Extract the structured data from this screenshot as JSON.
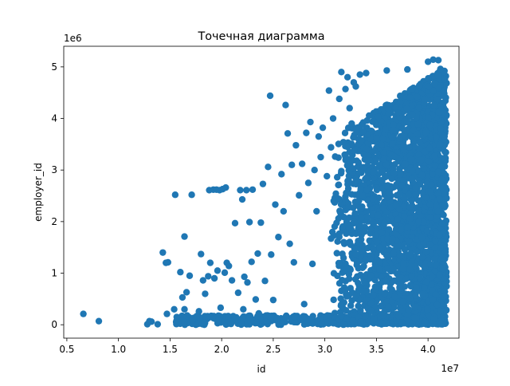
{
  "chart_data": {
    "type": "scatter",
    "title": "Точечная диаграмма",
    "xlabel": "id",
    "ylabel": "employer_id",
    "x_offset_label": "1e7",
    "y_offset_label": "1e6",
    "xlim": [
      0.47,
      4.3
    ],
    "ylim": [
      -0.26,
      5.4
    ],
    "x_ticks": [
      0.5,
      1.0,
      1.5,
      2.0,
      2.5,
      3.0,
      3.5,
      4.0
    ],
    "x_tick_labels": [
      "0.5",
      "1.0",
      "1.5",
      "2.0",
      "2.5",
      "3.0",
      "3.5",
      "4.0"
    ],
    "y_ticks": [
      0,
      1,
      2,
      3,
      4,
      5
    ],
    "y_tick_labels": [
      "0",
      "1",
      "2",
      "3",
      "4",
      "5"
    ],
    "grid": false,
    "marker_color": "#1f77b4",
    "points": [
      [
        0.66,
        0.21
      ],
      [
        0.81,
        0.07
      ],
      [
        1.28,
        0.01
      ],
      [
        1.3,
        0.07
      ],
      [
        1.32,
        0.06
      ],
      [
        1.38,
        0.01
      ],
      [
        1.43,
        1.4
      ],
      [
        1.46,
        1.2
      ],
      [
        1.48,
        1.21
      ],
      [
        1.47,
        0.21
      ],
      [
        1.54,
        0.3
      ],
      [
        1.55,
        2.52
      ],
      [
        1.6,
        1.02
      ],
      [
        1.62,
        0.53
      ],
      [
        1.64,
        1.71
      ],
      [
        1.64,
        0.3
      ],
      [
        1.66,
        0.63
      ],
      [
        1.69,
        0.95
      ],
      [
        1.71,
        2.52
      ],
      [
        1.78,
        0.26
      ],
      [
        1.8,
        1.37
      ],
      [
        1.82,
        0.86
      ],
      [
        1.84,
        0.6
      ],
      [
        1.87,
        0.94
      ],
      [
        1.88,
        2.61
      ],
      [
        1.89,
        1.2
      ],
      [
        1.92,
        2.62
      ],
      [
        1.93,
        0.9
      ],
      [
        1.95,
        2.62
      ],
      [
        1.96,
        1.05
      ],
      [
        1.98,
        2.61
      ],
      [
        1.99,
        0.33
      ],
      [
        2.01,
        2.63
      ],
      [
        2.03,
        1.01
      ],
      [
        2.04,
        2.66
      ],
      [
        2.05,
        1.2
      ],
      [
        2.07,
        1.14
      ],
      [
        2.1,
        0.86
      ],
      [
        2.13,
        1.97
      ],
      [
        2.16,
        0.62
      ],
      [
        2.18,
        2.61
      ],
      [
        2.2,
        2.43
      ],
      [
        2.21,
        0.3
      ],
      [
        2.22,
        0.93
      ],
      [
        2.24,
        2.61
      ],
      [
        2.25,
        0.82
      ],
      [
        2.27,
        1.99
      ],
      [
        2.29,
        1.22
      ],
      [
        2.3,
        2.62
      ],
      [
        2.33,
        0.49
      ],
      [
        2.35,
        1.38
      ],
      [
        2.36,
        0.22
      ],
      [
        2.38,
        1.98
      ],
      [
        2.4,
        2.73
      ],
      [
        2.42,
        0.85
      ],
      [
        2.45,
        3.06
      ],
      [
        2.47,
        4.44
      ],
      [
        2.48,
        1.36
      ],
      [
        2.5,
        0.48
      ],
      [
        2.52,
        2.33
      ],
      [
        2.55,
        1.7
      ],
      [
        2.58,
        2.92
      ],
      [
        2.6,
        2.2
      ],
      [
        2.62,
        4.26
      ],
      [
        2.64,
        3.71
      ],
      [
        2.66,
        1.57
      ],
      [
        2.68,
        3.1
      ],
      [
        2.7,
        1.21
      ],
      [
        2.72,
        3.48
      ],
      [
        2.75,
        2.51
      ],
      [
        2.78,
        3.12
      ],
      [
        2.8,
        0.4
      ],
      [
        2.82,
        3.72
      ],
      [
        2.84,
        2.75
      ],
      [
        2.86,
        3.93
      ],
      [
        2.88,
        1.18
      ],
      [
        2.9,
        3.0
      ],
      [
        2.92,
        2.2
      ],
      [
        2.94,
        3.65
      ],
      [
        2.96,
        3.25
      ],
      [
        2.98,
        3.82
      ],
      [
        3.02,
        2.88
      ],
      [
        3.04,
        4.54
      ],
      [
        3.06,
        3.44
      ],
      [
        3.08,
        4.0
      ],
      [
        3.1,
        3.26
      ],
      [
        3.12,
        2.86
      ],
      [
        3.14,
        4.38
      ],
      [
        3.16,
        4.9
      ],
      [
        3.18,
        3.54
      ],
      [
        3.2,
        4.57
      ],
      [
        3.22,
        4.8
      ],
      [
        3.24,
        4.2
      ],
      [
        3.26,
        3.9
      ],
      [
        3.28,
        4.7
      ],
      [
        3.3,
        4.62
      ],
      [
        3.34,
        4.85
      ],
      [
        3.4,
        4.88
      ],
      [
        3.6,
        4.93
      ],
      [
        3.8,
        4.95
      ],
      [
        4.0,
        5.1
      ],
      [
        4.05,
        5.14
      ],
      [
        4.1,
        5.13
      ],
      [
        4.12,
        4.96
      ]
    ],
    "dense_region": {
      "x_range": [
        3.05,
        4.18
      ],
      "y_range": [
        0.0,
        5.0
      ]
    }
  }
}
